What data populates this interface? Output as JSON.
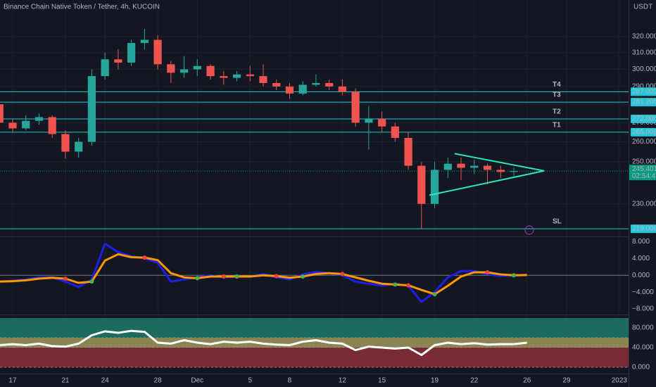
{
  "header": {
    "title": "Binance Chain Native Token / Tether, 4h, KUCOIN",
    "currency": "USDT"
  },
  "chart_data": [
    {
      "type": "candlestick",
      "x": [
        16,
        17,
        18,
        19,
        20,
        21,
        22,
        23,
        24,
        25,
        26,
        27,
        28,
        29,
        30,
        31,
        32,
        33,
        34,
        35,
        36,
        37,
        38,
        39,
        40,
        41,
        42,
        43,
        44,
        45,
        46,
        47,
        48,
        49,
        50,
        51,
        52,
        53,
        54,
        55
      ],
      "open": [
        280,
        270,
        267,
        271,
        273,
        264,
        255,
        260,
        296,
        306,
        304,
        316,
        318,
        303,
        298,
        300,
        302,
        296,
        295,
        297,
        296,
        292,
        290,
        286,
        291,
        292,
        290,
        287,
        270,
        272,
        268,
        262,
        248,
        230,
        246,
        249,
        247,
        248,
        246,
        245
      ],
      "high": [
        282,
        272,
        274,
        275,
        274,
        266,
        262,
        300,
        310,
        312,
        318,
        325,
        321,
        305,
        308,
        306,
        303,
        299,
        299,
        302,
        303,
        294,
        292,
        293,
        297,
        294,
        294,
        289,
        279,
        276,
        270,
        265,
        250,
        250,
        252,
        252,
        251,
        249,
        248,
        247
      ],
      "low": [
        268,
        265,
        266,
        269,
        262,
        251.6,
        252,
        258,
        294,
        300,
        302,
        312,
        300,
        292,
        295,
        296,
        294,
        291,
        293,
        293,
        290,
        288,
        283,
        285,
        290,
        288,
        285,
        268,
        256,
        265,
        260,
        246,
        219,
        228,
        242,
        241,
        244,
        239,
        242,
        243
      ],
      "close": [
        270,
        267,
        271,
        273,
        264,
        255,
        260,
        296,
        306,
        304,
        316,
        318,
        303,
        298,
        300,
        302,
        296,
        295,
        297,
        296,
        292,
        290,
        286,
        291,
        292,
        290,
        287,
        270,
        272,
        268,
        262,
        248,
        230,
        246,
        249,
        247,
        248,
        246,
        245,
        245.4
      ],
      "up_color": "#26a69a",
      "down_color": "#ef5350",
      "log_scale": true,
      "ylim": [
        216,
        344
      ],
      "xlim": [
        16.04,
        63.7
      ],
      "grid": true,
      "yticks": [
        {
          "value": 230,
          "label": "230.000"
        },
        {
          "value": 250,
          "label": "250.000"
        },
        {
          "value": 260,
          "label": "260.000"
        },
        {
          "value": 270,
          "label": "270.000"
        },
        {
          "value": 280,
          "label": "280.000"
        },
        {
          "value": 290,
          "label": "290.000"
        },
        {
          "value": 300,
          "label": "300.000"
        },
        {
          "value": 310,
          "label": "310.000"
        },
        {
          "value": 320,
          "label": "320.000"
        }
      ],
      "xticks": [
        17,
        21,
        24,
        28,
        {
          "value": 31,
          "label": "Dec"
        },
        {
          "value": 35,
          "label": "5"
        },
        {
          "value": 38,
          "label": "8"
        },
        {
          "value": 42,
          "label": "12"
        },
        {
          "value": 45,
          "label": "15"
        },
        {
          "value": 49,
          "label": "19"
        },
        {
          "value": 52,
          "label": "22"
        },
        {
          "value": 56,
          "label": "26"
        },
        {
          "value": 59,
          "label": "29"
        },
        {
          "value": 63,
          "label": "2023"
        }
      ],
      "levels": [
        {
          "name": "T4",
          "value": 287,
          "label": "287.000"
        },
        {
          "name": "T3",
          "value": 281.2,
          "label": "281.200"
        },
        {
          "name": "T2",
          "value": 272,
          "label": "272.000"
        },
        {
          "name": "T1",
          "value": 265,
          "label": "265.000"
        },
        {
          "name": "SL",
          "value": 219,
          "label": "219.000"
        }
      ],
      "level_color": "#26c6da",
      "trendlines": [
        {
          "x": [
            50.5,
            57.3
          ],
          "y": [
            254,
            245.5
          ]
        },
        {
          "x": [
            48.6,
            57.3
          ],
          "y": [
            234,
            245.5
          ]
        }
      ],
      "trendline_color": "#2ee8b6",
      "last_price": {
        "value": 245.401,
        "label": "245.401",
        "countdown": "02:54:47",
        "color": "#089981"
      }
    },
    {
      "type": "line",
      "x": [
        16,
        17,
        18,
        19,
        20,
        21,
        22,
        23,
        24,
        25,
        26,
        27,
        28,
        29,
        30,
        31,
        32,
        33,
        34,
        35,
        36,
        37,
        38,
        39,
        40,
        41,
        42,
        43,
        44,
        45,
        46,
        47,
        48,
        49,
        50,
        51,
        52,
        53,
        54,
        55,
        56
      ],
      "series": [
        {
          "color": "#1e1ee8",
          "values": [
            -1.5,
            -1.3,
            -1,
            -0.5,
            -0.5,
            -1.5,
            -2.8,
            -1,
            7.5,
            5.5,
            4.5,
            4,
            3,
            -1.5,
            -1,
            -0.5,
            0,
            -0.5,
            -0.3,
            -0.3,
            0.3,
            -0.5,
            -1,
            0.2,
            0.8,
            0.5,
            0,
            -1.5,
            -2,
            -2.5,
            -2,
            -2.5,
            -6.3,
            -4,
            -0.5,
            1,
            1,
            0.3,
            -0.2,
            0,
            0.1
          ]
        },
        {
          "color": "#ff9800",
          "values": [
            -1.5,
            -1.4,
            -1.2,
            -0.8,
            -0.6,
            -0.8,
            -1.8,
            -1.5,
            3.5,
            5,
            4.3,
            4.2,
            3.6,
            0.5,
            -0.5,
            -0.7,
            -0.3,
            -0.3,
            -0.3,
            -0.3,
            0,
            -0.2,
            -0.6,
            -0.3,
            0.3,
            0.5,
            0.3,
            -0.5,
            -1.3,
            -2,
            -2.2,
            -2.4,
            -3.5,
            -4.5,
            -2.5,
            -0.3,
            0.7,
            0.7,
            0.2,
            0,
            0.05
          ]
        }
      ],
      "crossover_colors": [
        "#4caf50",
        "#f44336"
      ],
      "zero_line": true,
      "ylim": [
        -9,
        8.9
      ],
      "yticks": [
        {
          "value": 8,
          "label": "8.000"
        },
        {
          "value": 4,
          "label": "4.000"
        },
        {
          "value": 0,
          "label": "0.000"
        },
        {
          "value": -4,
          "label": "−4.000"
        },
        {
          "value": -8,
          "label": "−8.000"
        }
      ]
    },
    {
      "type": "line",
      "x": [
        16,
        17,
        18,
        19,
        20,
        21,
        22,
        23,
        24,
        25,
        26,
        27,
        28,
        29,
        30,
        31,
        32,
        33,
        34,
        35,
        36,
        37,
        38,
        39,
        40,
        41,
        42,
        43,
        44,
        45,
        46,
        47,
        48,
        49,
        50,
        51,
        52,
        53,
        54,
        55,
        56
      ],
      "series": [
        {
          "color": "#ffffff",
          "values": [
            45,
            47,
            45,
            48,
            43,
            42,
            48,
            65,
            73,
            70,
            74,
            72,
            50,
            48,
            55,
            50,
            47,
            52,
            50,
            52,
            48,
            46,
            45,
            52,
            55,
            50,
            48,
            35,
            42,
            40,
            38,
            40,
            25,
            45,
            50,
            47,
            49,
            46,
            47,
            47,
            50
          ]
        }
      ],
      "bands": [
        {
          "from": 60,
          "to": 100,
          "color": "#1d6b5f"
        },
        {
          "from": 40,
          "to": 60,
          "color": "#8a8452"
        },
        {
          "from": 0,
          "to": 40,
          "color": "#7a2c36"
        }
      ],
      "ylim": [
        -11.4,
        102.9
      ],
      "yticks": [
        {
          "value": 80,
          "label": "80.000"
        },
        {
          "value": 40,
          "label": "40.000"
        },
        {
          "value": 0,
          "label": "0.000"
        }
      ]
    }
  ]
}
